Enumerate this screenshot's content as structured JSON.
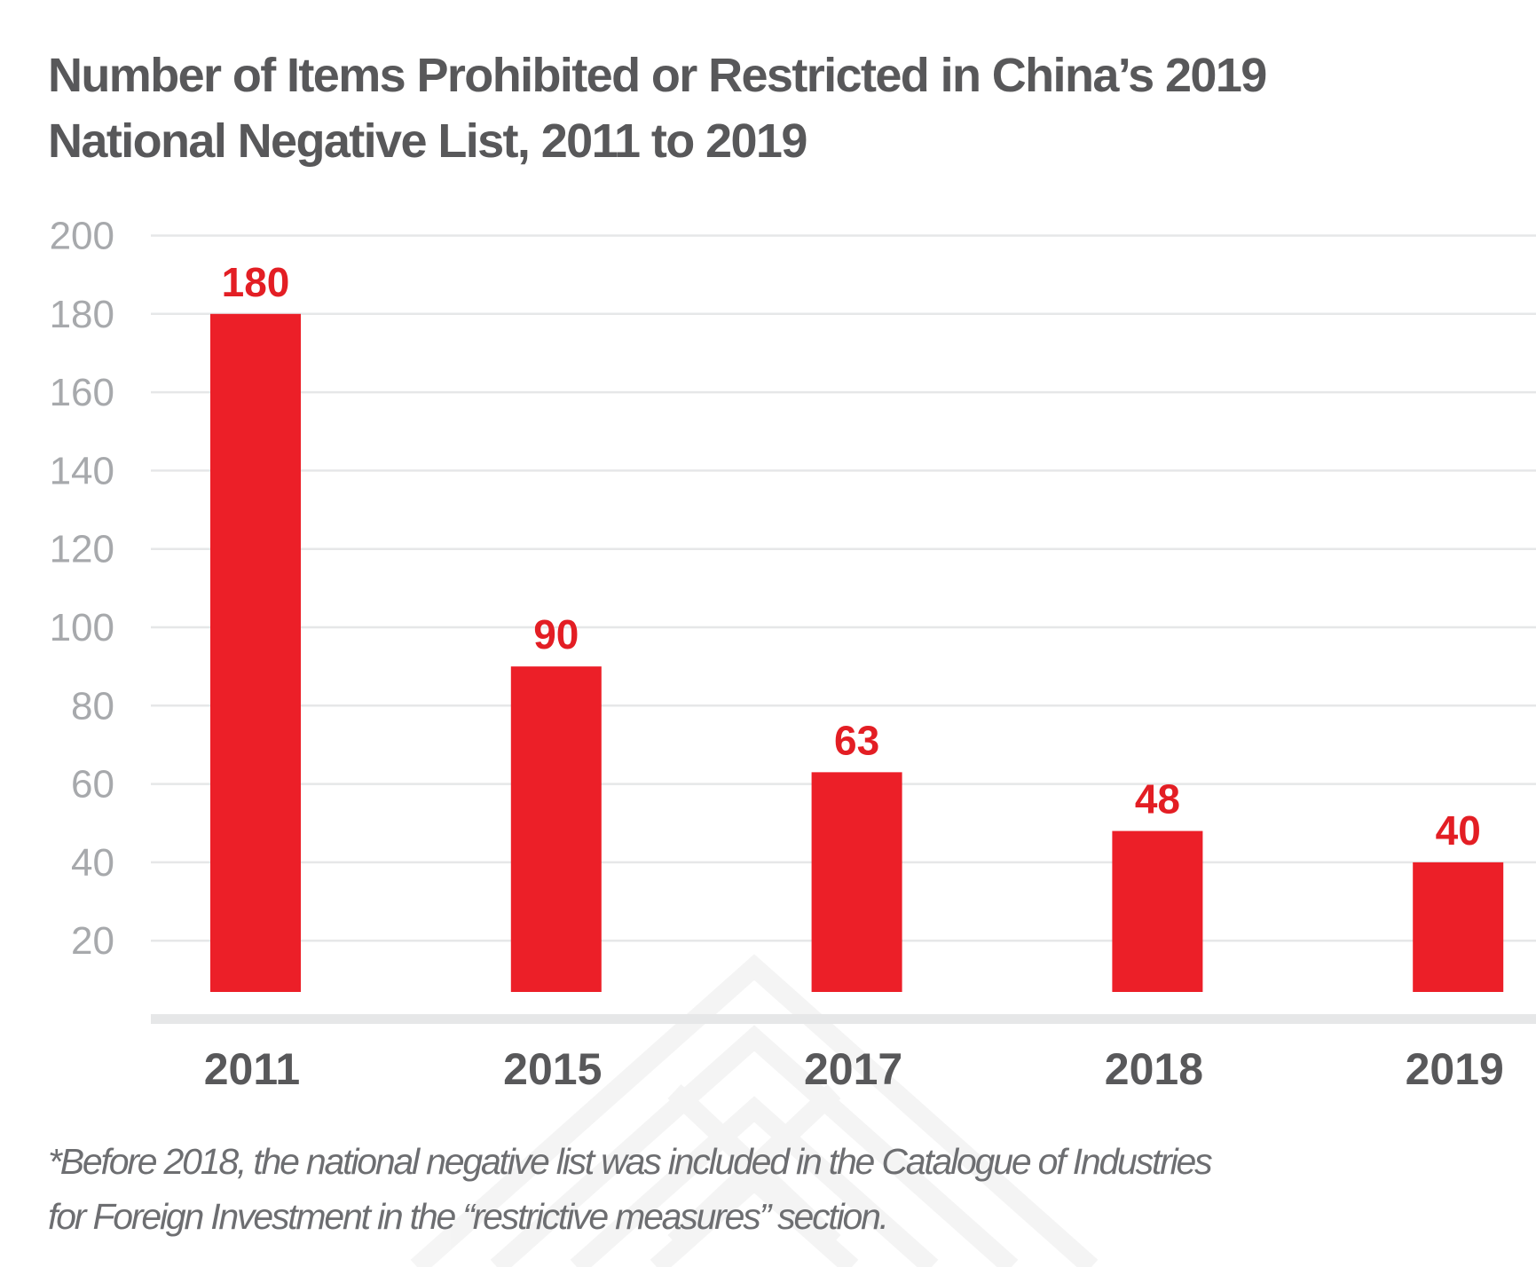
{
  "chart_data": {
    "type": "bar",
    "title": "Number of Items Prohibited or Restricted in China’s 2019 National Negative List, 2011 to 2019",
    "title_lines": [
      "Number of Items Prohibited or Restricted in China’s 2019",
      "National Negative List, 2011 to 2019"
    ],
    "xlabel": "",
    "ylabel": "",
    "categories": [
      "2011",
      "2015",
      "2017",
      "2018",
      "2019"
    ],
    "values": [
      180,
      90,
      63,
      48,
      40
    ],
    "data_labels": [
      "180",
      "90",
      "63",
      "48",
      "40"
    ],
    "y_ticks": [
      20,
      40,
      60,
      80,
      100,
      120,
      140,
      160,
      180,
      200
    ],
    "y_tick_labels": [
      "20",
      "40",
      "60",
      "80",
      "100",
      "120",
      "140",
      "160",
      "180",
      "200"
    ],
    "ylim": [
      0,
      200
    ],
    "grid": true,
    "legend": "none",
    "colors": {
      "bar": "#ec1f28",
      "data_label": "#e31e24",
      "title": "#58585a",
      "gridline": "#e6e7e8",
      "axis_band": "#e6e7e8",
      "y_tick_label": "#a7a9ac",
      "x_tick_label": "#58585a",
      "footnote": "#6d6e71"
    },
    "footnote_lines": [
      "*Before 2018, the national negative list was included in the Catalogue of Industries",
      "for Foreign Investment in the “restrictive measures” section."
    ]
  },
  "watermark": {
    "icon": "triangle-lattice-logo-icon"
  }
}
